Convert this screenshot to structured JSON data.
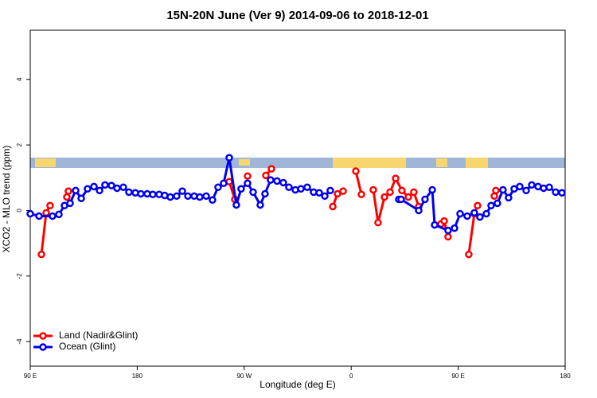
{
  "chart_data": {
    "type": "line",
    "title": "15N-20N June (Ver 9)   2014-09-06 to 2018-12-01",
    "x_label": "Longitude (deg E)",
    "y_label": "XCO2 - MLO trend (ppm)",
    "xlim": [
      90,
      540
    ],
    "ylim": [
      -4.75,
      5.5
    ],
    "xticks": [
      {
        "value": 90,
        "label": "90 E"
      },
      180,
      {
        "value": 270,
        "label": "90 W"
      },
      {
        "value": 360,
        "label": "0"
      },
      {
        "value": 450,
        "label": "90 E"
      },
      {
        "value": 540,
        "label": "180"
      }
    ],
    "yticks": [
      -4,
      -2,
      0,
      2,
      4
    ],
    "legend": "bottom-left",
    "series": [
      {
        "name": "Land (Nadir&Glint)",
        "color": "#ff0000",
        "x": [
          99.4,
          103.4,
          106.7,
          null,
          120.8,
          122.1,
          null,
          257.4,
          262.1,
          null,
          272.8,
          null,
          288.2,
          292.9,
          null,
          344.5,
          348.5,
          353.2,
          null,
          363.9,
          368.6,
          null,
          378.6,
          382.6,
          388,
          392.7,
          397.4,
          402.7,
          408.1,
          412.7,
          416.8,
          null,
          435.5,
          438.2,
          441.5,
          null,
          458.9,
          463.6,
          466.3,
          null,
          480.4,
          481.7
        ],
        "values": [
          -1.34,
          -0.07,
          0.15,
          null,
          0.41,
          0.59,
          null,
          0.88,
          0.34,
          null,
          1.05,
          null,
          1.07,
          1.27,
          null,
          0.12,
          0.51,
          0.59,
          null,
          1.2,
          0.49,
          null,
          0.63,
          -0.37,
          0.41,
          0.56,
          0.98,
          0.61,
          0.41,
          0.56,
          0.12,
          null,
          -0.41,
          -0.32,
          -0.8,
          null,
          -1.34,
          -0.1,
          0.15,
          null,
          0.44,
          0.61
        ]
      },
      {
        "name": "Ocean (Glint)",
        "color": "#0000ee",
        "x": [
          90,
          97.4,
          108.7,
          114.1,
          118.8,
          123.5,
          128.2,
          132.9,
          138.2,
          143.6,
          148.3,
          152.9,
          158.3,
          163,
          168.3,
          173,
          178.4,
          183.1,
          188.4,
          193.1,
          198.4,
          203.1,
          207.8,
          213.2,
          217.9,
          222.6,
          227.9,
          232.6,
          238,
          243.3,
          248,
          252.7,
          257.4,
          263.4,
          267.4,
          272.8,
          277.5,
          283.5,
          287.5,
          292.2,
          297.6,
          302.9,
          307.6,
          313,
          317.7,
          323,
          328.4,
          333.1,
          337.8,
          342.4,
          null,
          400,
          402,
          416.8,
          422.1,
          428.2,
          430.2,
          441.5,
          446.9,
          451.6,
          457.6,
          463.6,
          468.3,
          473.7,
          477.7,
          483,
          487.7,
          492.4,
          497.1,
          501.8,
          507.2,
          511.9,
          517.2,
          521.9,
          526.6,
          532,
          537.3
        ],
        "values": [
          -0.1,
          -0.17,
          -0.17,
          -0.12,
          0.15,
          0.22,
          0.61,
          0.37,
          0.66,
          0.73,
          0.61,
          0.78,
          0.76,
          0.68,
          0.71,
          0.56,
          0.54,
          0.51,
          0.51,
          0.49,
          0.49,
          0.46,
          0.41,
          0.44,
          0.59,
          0.44,
          0.44,
          0.41,
          0.44,
          0.32,
          0.71,
          0.83,
          1.61,
          0.17,
          0.66,
          0.83,
          0.56,
          0.17,
          0.51,
          0.93,
          0.9,
          0.85,
          0.71,
          0.63,
          0.66,
          0.71,
          0.56,
          0.54,
          0.44,
          0.61,
          null,
          0.34,
          0.34,
          0,
          0.34,
          0.63,
          -0.44,
          -0.61,
          -0.54,
          -0.1,
          -0.17,
          -0.07,
          -0.2,
          -0.1,
          0.15,
          0.22,
          0.63,
          0.39,
          0.66,
          0.73,
          0.61,
          0.78,
          0.73,
          0.68,
          0.71,
          0.56,
          0.54
        ]
      }
    ]
  }
}
